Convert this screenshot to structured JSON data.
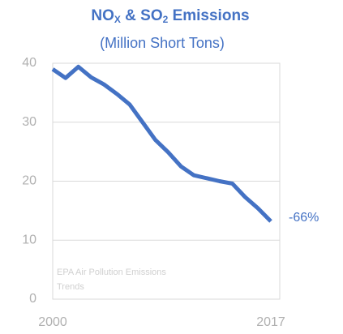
{
  "chart_data": {
    "type": "line",
    "title_parts": [
      "NO",
      "X",
      " & SO",
      "2",
      " Emissions"
    ],
    "subtitle": "(Million Short Tons)",
    "annotation": "-66%",
    "source": [
      "EPA Air Pollution Emissions",
      "Trends"
    ],
    "x": [
      2000,
      2001,
      2002,
      2003,
      2004,
      2005,
      2006,
      2007,
      2008,
      2009,
      2010,
      2011,
      2012,
      2013,
      2014,
      2015,
      2016,
      2017
    ],
    "series": [
      {
        "color": "#4472c4",
        "values": [
          39,
          37.5,
          39.4,
          37.6,
          36.4,
          34.8,
          33,
          30,
          27,
          24.9,
          22.5,
          21,
          20.5,
          20,
          19.6,
          17.3,
          15.4,
          13.2
        ]
      }
    ],
    "xlim": [
      2000,
      2017
    ],
    "xticks": [
      2000,
      2017
    ],
    "ylim": [
      0,
      40
    ],
    "yticks": [
      0,
      10,
      20,
      30,
      40
    ],
    "grid": true
  }
}
